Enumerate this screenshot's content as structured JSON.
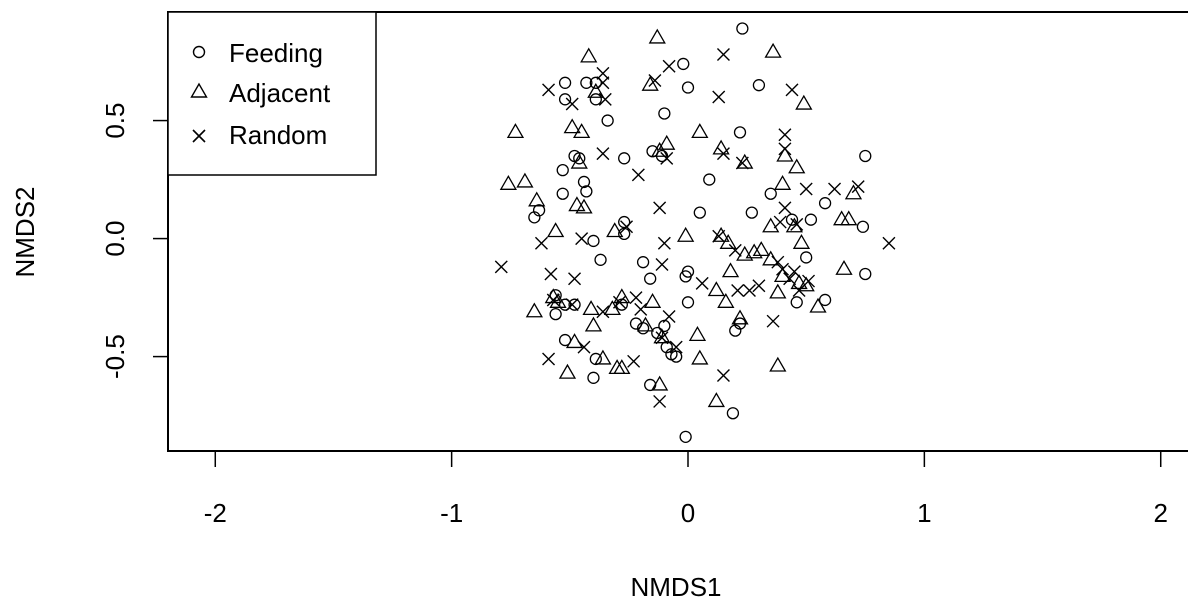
{
  "chart_data": {
    "type": "scatter",
    "title": "",
    "xlabel": "NMDS1",
    "ylabel": "NMDS2",
    "xlim": [
      -2.2,
      2.2
    ],
    "ylim": [
      -0.9,
      0.96
    ],
    "x_ticks": [
      -2,
      -1,
      0,
      1,
      2
    ],
    "x_tick_labels": [
      "-2",
      "-1",
      "0",
      "1",
      "2"
    ],
    "y_ticks": [
      -0.5,
      0.0,
      0.5
    ],
    "y_tick_labels": [
      "-0.5",
      "0.0",
      "0.5"
    ],
    "grid": false,
    "legend_position": "top-left",
    "series": [
      {
        "name": "Feeding",
        "marker": "circle",
        "points": [
          [
            0.23,
            0.89
          ],
          [
            -0.43,
            0.66
          ],
          [
            -0.39,
            0.66
          ],
          [
            -0.52,
            0.66
          ],
          [
            -0.39,
            0.59
          ],
          [
            -0.52,
            0.59
          ],
          [
            -0.02,
            0.74
          ],
          [
            0.0,
            0.64
          ],
          [
            -0.1,
            0.53
          ],
          [
            -0.34,
            0.5
          ],
          [
            0.3,
            0.65
          ],
          [
            0.22,
            0.45
          ],
          [
            -0.48,
            0.35
          ],
          [
            -0.46,
            0.34
          ],
          [
            -0.27,
            0.34
          ],
          [
            -0.15,
            0.37
          ],
          [
            -0.11,
            0.35
          ],
          [
            -0.53,
            0.29
          ],
          [
            -0.44,
            0.24
          ],
          [
            -0.43,
            0.2
          ],
          [
            -0.53,
            0.19
          ],
          [
            0.09,
            0.25
          ],
          [
            0.75,
            0.35
          ],
          [
            0.35,
            0.19
          ],
          [
            -0.65,
            0.09
          ],
          [
            -0.63,
            0.12
          ],
          [
            0.05,
            0.11
          ],
          [
            0.27,
            0.11
          ],
          [
            0.58,
            0.15
          ],
          [
            0.52,
            0.08
          ],
          [
            0.44,
            0.08
          ],
          [
            0.74,
            0.05
          ],
          [
            -0.27,
            0.07
          ],
          [
            -0.27,
            0.02
          ],
          [
            -0.4,
            -0.01
          ],
          [
            0.5,
            -0.08
          ],
          [
            -0.19,
            -0.1
          ],
          [
            -0.37,
            -0.09
          ],
          [
            0.0,
            -0.14
          ],
          [
            -0.01,
            -0.16
          ],
          [
            -0.16,
            -0.17
          ],
          [
            0.75,
            -0.15
          ],
          [
            -0.56,
            -0.24
          ],
          [
            -0.52,
            -0.28
          ],
          [
            -0.48,
            -0.28
          ],
          [
            -0.28,
            -0.28
          ],
          [
            0.0,
            -0.27
          ],
          [
            0.46,
            -0.27
          ],
          [
            0.58,
            -0.26
          ],
          [
            -0.56,
            -0.32
          ],
          [
            -0.22,
            -0.36
          ],
          [
            -0.1,
            -0.37
          ],
          [
            -0.19,
            -0.38
          ],
          [
            -0.13,
            -0.4
          ],
          [
            0.2,
            -0.39
          ],
          [
            0.22,
            -0.36
          ],
          [
            -0.52,
            -0.43
          ],
          [
            -0.09,
            -0.46
          ],
          [
            -0.07,
            -0.49
          ],
          [
            -0.05,
            -0.5
          ],
          [
            -0.39,
            -0.51
          ],
          [
            -0.16,
            -0.62
          ],
          [
            -0.4,
            -0.59
          ],
          [
            0.19,
            -0.74
          ],
          [
            -0.01,
            -0.84
          ]
        ]
      },
      {
        "name": "Adjacent",
        "marker": "triangle",
        "points": [
          [
            -0.13,
            0.85
          ],
          [
            0.36,
            0.79
          ],
          [
            -0.42,
            0.77
          ],
          [
            -0.16,
            0.65
          ],
          [
            -0.39,
            0.62
          ],
          [
            0.49,
            0.57
          ],
          [
            -0.73,
            0.45
          ],
          [
            -0.49,
            0.47
          ],
          [
            -0.45,
            0.45
          ],
          [
            0.05,
            0.45
          ],
          [
            -0.09,
            0.4
          ],
          [
            -0.12,
            0.37
          ],
          [
            0.14,
            0.38
          ],
          [
            0.41,
            0.35
          ],
          [
            -0.46,
            0.32
          ],
          [
            0.24,
            0.32
          ],
          [
            0.46,
            0.3
          ],
          [
            -0.76,
            0.23
          ],
          [
            -0.69,
            0.24
          ],
          [
            0.4,
            0.23
          ],
          [
            0.7,
            0.19
          ],
          [
            -0.64,
            0.16
          ],
          [
            -0.47,
            0.14
          ],
          [
            -0.44,
            0.13
          ],
          [
            0.65,
            0.08
          ],
          [
            0.68,
            0.08
          ],
          [
            -0.56,
            0.03
          ],
          [
            -0.31,
            0.03
          ],
          [
            -0.01,
            0.01
          ],
          [
            0.14,
            0.01
          ],
          [
            0.17,
            -0.02
          ],
          [
            0.35,
            0.05
          ],
          [
            0.45,
            0.05
          ],
          [
            0.48,
            -0.02
          ],
          [
            0.24,
            -0.07
          ],
          [
            0.28,
            -0.06
          ],
          [
            0.31,
            -0.05
          ],
          [
            0.35,
            -0.09
          ],
          [
            0.4,
            -0.16
          ],
          [
            0.47,
            -0.19
          ],
          [
            0.5,
            -0.2
          ],
          [
            0.66,
            -0.13
          ],
          [
            0.18,
            -0.14
          ],
          [
            0.12,
            -0.22
          ],
          [
            -0.57,
            -0.25
          ],
          [
            -0.55,
            -0.27
          ],
          [
            -0.28,
            -0.25
          ],
          [
            -0.15,
            -0.27
          ],
          [
            0.38,
            -0.23
          ],
          [
            0.55,
            -0.29
          ],
          [
            -0.65,
            -0.31
          ],
          [
            -0.41,
            -0.3
          ],
          [
            -0.32,
            -0.3
          ],
          [
            0.16,
            -0.27
          ],
          [
            0.22,
            -0.34
          ],
          [
            -0.4,
            -0.37
          ],
          [
            -0.18,
            -0.37
          ],
          [
            0.04,
            -0.41
          ],
          [
            -0.48,
            -0.44
          ],
          [
            -0.11,
            -0.42
          ],
          [
            -0.36,
            -0.51
          ],
          [
            -0.3,
            -0.55
          ],
          [
            -0.28,
            -0.55
          ],
          [
            0.05,
            -0.51
          ],
          [
            0.38,
            -0.54
          ],
          [
            -0.51,
            -0.57
          ],
          [
            -0.12,
            -0.62
          ],
          [
            0.12,
            -0.69
          ]
        ]
      },
      {
        "name": "Random",
        "marker": "cross",
        "points": [
          [
            0.15,
            0.78
          ],
          [
            -0.08,
            0.73
          ],
          [
            -0.36,
            0.7
          ],
          [
            -0.14,
            0.67
          ],
          [
            -0.36,
            0.66
          ],
          [
            -0.59,
            0.63
          ],
          [
            0.44,
            0.63
          ],
          [
            -0.35,
            0.59
          ],
          [
            0.13,
            0.6
          ],
          [
            -0.49,
            0.57
          ],
          [
            0.41,
            0.44
          ],
          [
            -0.36,
            0.36
          ],
          [
            0.41,
            0.38
          ],
          [
            0.15,
            0.36
          ],
          [
            -0.09,
            0.34
          ],
          [
            -0.21,
            0.27
          ],
          [
            0.23,
            0.32
          ],
          [
            0.5,
            0.21
          ],
          [
            0.62,
            0.21
          ],
          [
            0.72,
            0.22
          ],
          [
            0.41,
            0.13
          ],
          [
            -0.12,
            0.13
          ],
          [
            0.39,
            0.07
          ],
          [
            0.46,
            0.06
          ],
          [
            -0.26,
            0.05
          ],
          [
            0.85,
            -0.02
          ],
          [
            0.13,
            0.01
          ],
          [
            -0.45,
            0.0
          ],
          [
            -0.62,
            -0.02
          ],
          [
            -0.1,
            -0.02
          ],
          [
            0.2,
            -0.05
          ],
          [
            -0.79,
            -0.12
          ],
          [
            -0.58,
            -0.15
          ],
          [
            -0.48,
            -0.17
          ],
          [
            -0.11,
            -0.11
          ],
          [
            0.38,
            -0.1
          ],
          [
            0.4,
            -0.13
          ],
          [
            0.45,
            -0.14
          ],
          [
            0.43,
            -0.17
          ],
          [
            0.3,
            -0.2
          ],
          [
            0.21,
            -0.22
          ],
          [
            0.47,
            -0.22
          ],
          [
            0.51,
            -0.18
          ],
          [
            0.26,
            -0.22
          ],
          [
            0.06,
            -0.19
          ],
          [
            -0.22,
            -0.25
          ],
          [
            -0.2,
            -0.3
          ],
          [
            -0.57,
            -0.26
          ],
          [
            -0.49,
            -0.28
          ],
          [
            -0.29,
            -0.27
          ],
          [
            -0.36,
            -0.31
          ],
          [
            -0.08,
            -0.33
          ],
          [
            0.36,
            -0.35
          ],
          [
            -0.11,
            -0.42
          ],
          [
            -0.44,
            -0.46
          ],
          [
            -0.05,
            -0.46
          ],
          [
            -0.23,
            -0.52
          ],
          [
            -0.59,
            -0.51
          ],
          [
            0.15,
            -0.58
          ],
          [
            -0.12,
            -0.69
          ]
        ]
      }
    ]
  }
}
